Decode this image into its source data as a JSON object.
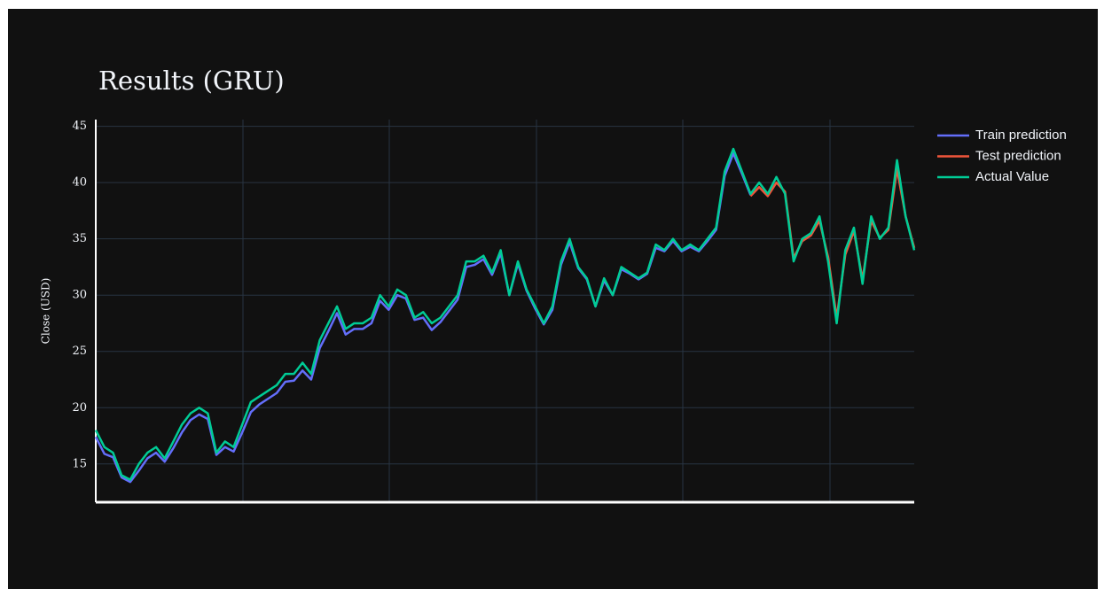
{
  "chart_data": {
    "type": "line",
    "title": "Results (GRU)",
    "y_label": "Close (USD)",
    "ylim": [
      11.6,
      45.6
    ],
    "yticks": [
      15,
      20,
      25,
      30,
      35,
      40,
      45
    ],
    "grid": true,
    "series": [
      {
        "name": "Train prediction",
        "color": "#636efa",
        "values": [
          17.4,
          15.9,
          15.6,
          13.8,
          13.4,
          14.4,
          15.5,
          16,
          15.2,
          16.4,
          17.8,
          18.9,
          19.4,
          19,
          15.8,
          16.5,
          16.1,
          17.8,
          19.6,
          20.3,
          20.8,
          21.3,
          22.3,
          22.4,
          23.3,
          22.5,
          25.3,
          26.8,
          28.4,
          26.5,
          27,
          27,
          27.5,
          29.5,
          28.7,
          30,
          29.7,
          27.8,
          28,
          26.9,
          27.6,
          28.6,
          29.6,
          32.5,
          32.7,
          33.2,
          31.8,
          33.7,
          30,
          32.8,
          30.4,
          28.8,
          27.4,
          28.7,
          32.7,
          34.7,
          32.4,
          31.4,
          29,
          31.3,
          30,
          32.3,
          31.9,
          31.4,
          31.9,
          34.2,
          33.9,
          34.8,
          33.9,
          34.3,
          33.9,
          34.8,
          35.8,
          40.6,
          42.6,
          40.8,
          38.9,
          null,
          null,
          null,
          null,
          null,
          null,
          null,
          null,
          null,
          null,
          null,
          null,
          null,
          null,
          null,
          null,
          null,
          null,
          null
        ]
      },
      {
        "name": "Test prediction",
        "color": "#ef553b",
        "values": [
          null,
          null,
          null,
          null,
          null,
          null,
          null,
          null,
          null,
          null,
          null,
          null,
          null,
          null,
          null,
          null,
          null,
          null,
          null,
          null,
          null,
          null,
          null,
          null,
          null,
          null,
          null,
          null,
          null,
          null,
          null,
          null,
          null,
          null,
          null,
          null,
          null,
          null,
          null,
          null,
          null,
          null,
          null,
          null,
          null,
          null,
          null,
          null,
          null,
          null,
          null,
          null,
          null,
          null,
          null,
          null,
          null,
          null,
          null,
          null,
          null,
          null,
          null,
          null,
          null,
          null,
          null,
          null,
          null,
          null,
          null,
          null,
          null,
          null,
          null,
          null,
          38.8,
          39.6,
          38.8,
          40,
          39.2,
          33.3,
          34.8,
          35.3,
          36.6,
          33.4,
          28,
          33.6,
          35.7,
          31.4,
          36.6,
          35.1,
          35.8,
          41.2,
          37,
          34.2
        ]
      },
      {
        "name": "Actual Value",
        "color": "#00cc96",
        "values": [
          18,
          16.5,
          16,
          14,
          13.6,
          15,
          16,
          16.5,
          15.5,
          17,
          18.5,
          19.5,
          20,
          19.5,
          16,
          17,
          16.5,
          18.5,
          20.5,
          21,
          21.5,
          22,
          23,
          23,
          24,
          23,
          26,
          27.5,
          29,
          27,
          27.5,
          27.5,
          28,
          30,
          29,
          30.5,
          30,
          28,
          28.5,
          27.5,
          28,
          29,
          30,
          33,
          33,
          33.5,
          32,
          34,
          30,
          33,
          30.5,
          29,
          27.5,
          29,
          33,
          35,
          32.5,
          31.5,
          29,
          31.5,
          30,
          32.5,
          32,
          31.5,
          32,
          34.5,
          34,
          35,
          34,
          34.5,
          34,
          35,
          36,
          41,
          43,
          41,
          39,
          40,
          39,
          40.5,
          39,
          33,
          35,
          35.5,
          37,
          33,
          27.5,
          34,
          36,
          31,
          37,
          35,
          36,
          42,
          37,
          34
        ]
      }
    ]
  }
}
